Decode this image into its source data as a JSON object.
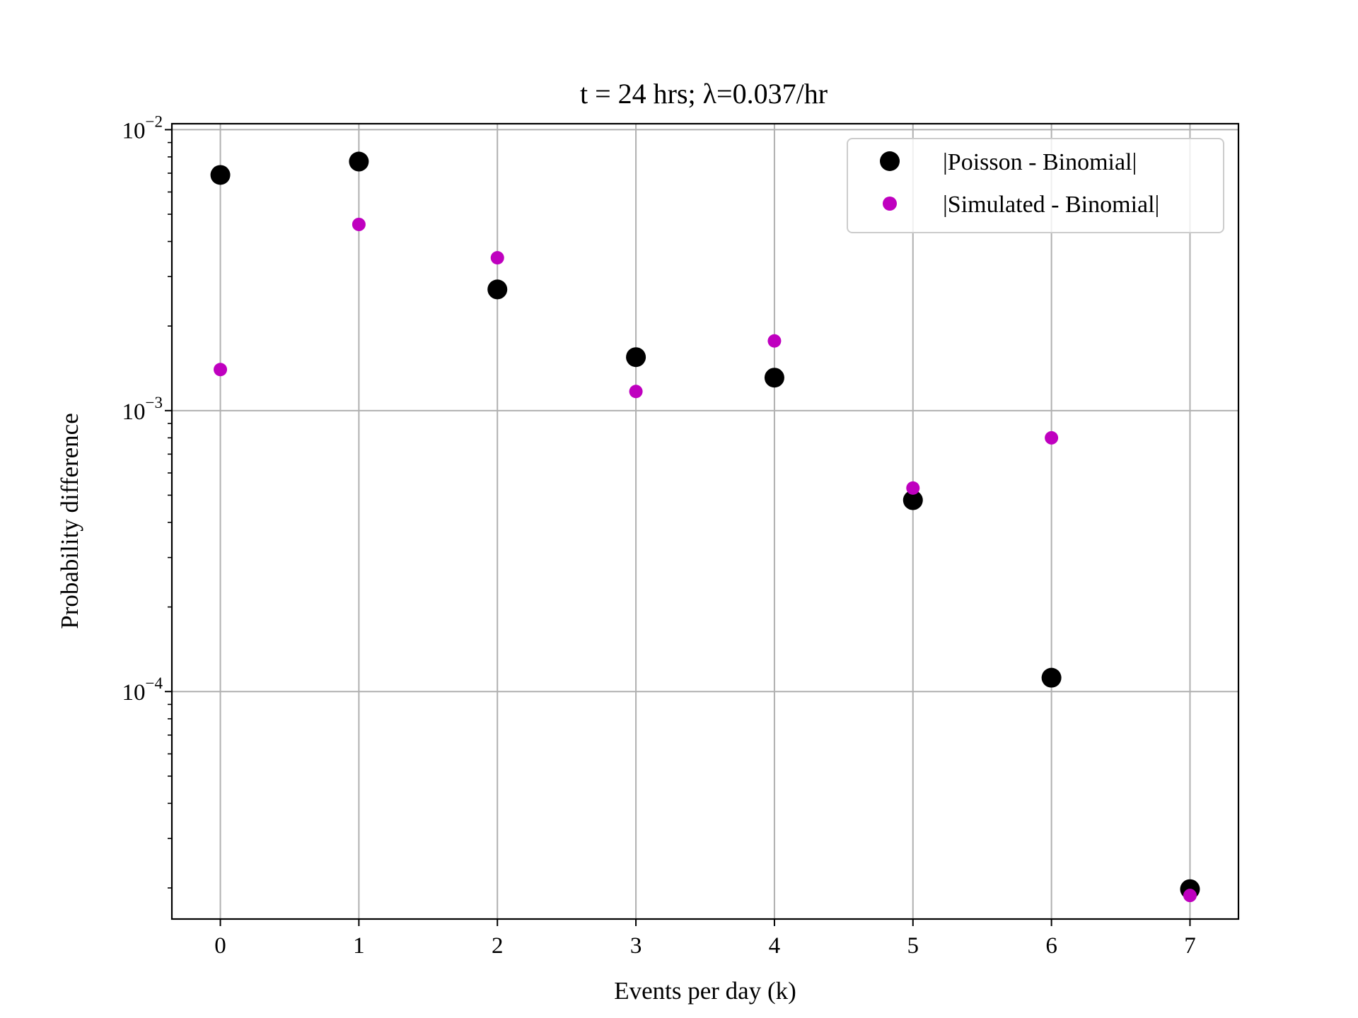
{
  "chart_data": {
    "type": "scatter",
    "title": "t = 24 hrs; λ=0.037/hr",
    "xlabel": "Events per day (k)",
    "ylabel": "Probability difference",
    "yscale": "log",
    "grid": true,
    "legend_position": "top-right",
    "xlim": [
      -0.35,
      7.35
    ],
    "ylim": [
      1.55e-05,
      0.0105
    ],
    "x_ticks": [
      0,
      1,
      2,
      3,
      4,
      5,
      6,
      7
    ],
    "y_ticks": [
      {
        "value": 0.0001,
        "base": "10",
        "exp": "−4"
      },
      {
        "value": 0.001,
        "base": "10",
        "exp": "−3"
      },
      {
        "value": 0.01,
        "base": "10",
        "exp": "−2"
      }
    ],
    "series": [
      {
        "name": "|Poisson - Binomial|",
        "color": "#000000",
        "marker": "large-circle",
        "x": [
          0,
          1,
          2,
          3,
          4,
          5,
          6,
          7
        ],
        "y": [
          0.0069,
          0.0077,
          0.0027,
          0.00155,
          0.00131,
          0.00048,
          0.000112,
          1.98e-05
        ]
      },
      {
        "name": "|Simulated - Binomial|",
        "color": "#bf00bf",
        "marker": "small-circle",
        "x": [
          0,
          1,
          2,
          3,
          4,
          5,
          6,
          7
        ],
        "y": [
          0.0014,
          0.0046,
          0.0035,
          0.00117,
          0.00177,
          0.00053,
          0.0008,
          1.88e-05
        ]
      }
    ]
  }
}
